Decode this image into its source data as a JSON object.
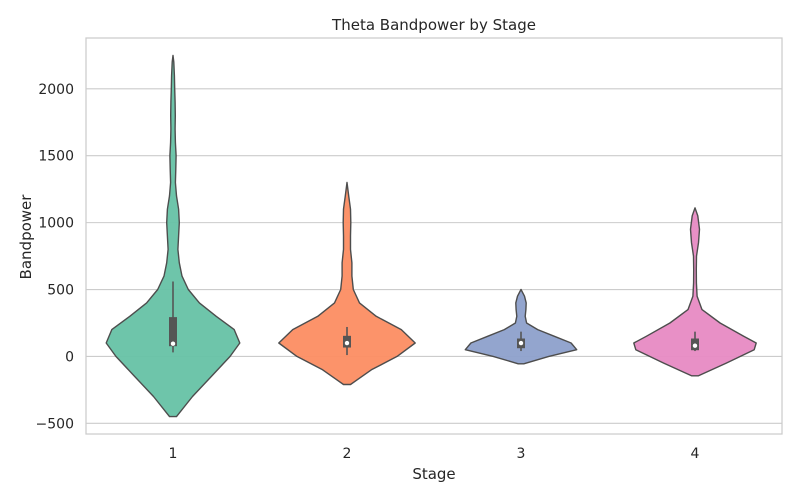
{
  "chart_data": {
    "type": "violin",
    "title": "Theta Bandpower by Stage",
    "xlabel": "Stage",
    "ylabel": "Bandpower",
    "ylim": [
      -580,
      2380
    ],
    "yticks": [
      -500,
      0,
      500,
      1000,
      1500,
      2000
    ],
    "ytick_labels": [
      "−500",
      "0",
      "500",
      "1000",
      "1500",
      "2000"
    ],
    "grid": true,
    "categories": [
      "1",
      "2",
      "3",
      "4"
    ],
    "colors": [
      "#66c2a5",
      "#fc8d62",
      "#8da0cb",
      "#e78ac3"
    ],
    "violins": [
      {
        "category": "1",
        "range": [
          -450,
          2250
        ],
        "profile": [
          [
            -450,
            0.05
          ],
          [
            -300,
            0.28
          ],
          [
            -150,
            0.55
          ],
          [
            0,
            0.82
          ],
          [
            100,
            0.96
          ],
          [
            200,
            0.88
          ],
          [
            300,
            0.62
          ],
          [
            400,
            0.38
          ],
          [
            500,
            0.22
          ],
          [
            600,
            0.13
          ],
          [
            700,
            0.09
          ],
          [
            800,
            0.07
          ],
          [
            900,
            0.08
          ],
          [
            1000,
            0.09
          ],
          [
            1100,
            0.08
          ],
          [
            1200,
            0.05
          ],
          [
            1300,
            0.035
          ],
          [
            1400,
            0.04
          ],
          [
            1500,
            0.045
          ],
          [
            1600,
            0.035
          ],
          [
            1700,
            0.03
          ],
          [
            1800,
            0.033
          ],
          [
            1900,
            0.03
          ],
          [
            2000,
            0.025
          ],
          [
            2100,
            0.02
          ],
          [
            2200,
            0.012
          ],
          [
            2250,
            0.0
          ]
        ],
        "median": 95,
        "q1": 80,
        "q3": 290,
        "whisker_low": 30,
        "whisker_high": 560
      },
      {
        "category": "2",
        "range": [
          -210,
          1300
        ],
        "profile": [
          [
            -210,
            0.05
          ],
          [
            -100,
            0.35
          ],
          [
            0,
            0.72
          ],
          [
            100,
            0.98
          ],
          [
            200,
            0.78
          ],
          [
            300,
            0.42
          ],
          [
            400,
            0.18
          ],
          [
            500,
            0.09
          ],
          [
            600,
            0.07
          ],
          [
            700,
            0.07
          ],
          [
            800,
            0.05
          ],
          [
            900,
            0.05
          ],
          [
            1000,
            0.055
          ],
          [
            1100,
            0.05
          ],
          [
            1200,
            0.025
          ],
          [
            1300,
            0.0
          ]
        ],
        "median": 100,
        "q1": 70,
        "q3": 150,
        "whisker_low": 10,
        "whisker_high": 220
      },
      {
        "category": "3",
        "range": [
          -55,
          500
        ],
        "profile": [
          [
            -55,
            0.04
          ],
          [
            0,
            0.4
          ],
          [
            50,
            0.8
          ],
          [
            100,
            0.72
          ],
          [
            150,
            0.48
          ],
          [
            200,
            0.24
          ],
          [
            250,
            0.08
          ],
          [
            300,
            0.06
          ],
          [
            350,
            0.07
          ],
          [
            400,
            0.075
          ],
          [
            450,
            0.05
          ],
          [
            500,
            0.0
          ]
        ],
        "median": 100,
        "q1": 65,
        "q3": 130,
        "whisker_low": 40,
        "whisker_high": 185
      },
      {
        "category": "4",
        "range": [
          -145,
          1110
        ],
        "profile": [
          [
            -145,
            0.05
          ],
          [
            -50,
            0.45
          ],
          [
            50,
            0.85
          ],
          [
            100,
            0.88
          ],
          [
            150,
            0.7
          ],
          [
            250,
            0.36
          ],
          [
            350,
            0.1
          ],
          [
            450,
            0.03
          ],
          [
            550,
            0.02
          ],
          [
            650,
            0.018
          ],
          [
            750,
            0.022
          ],
          [
            850,
            0.05
          ],
          [
            950,
            0.065
          ],
          [
            1050,
            0.04
          ],
          [
            1110,
            0.0
          ]
        ],
        "median": 80,
        "q1": 50,
        "q3": 130,
        "whisker_low": 40,
        "whisker_high": 185
      }
    ]
  }
}
